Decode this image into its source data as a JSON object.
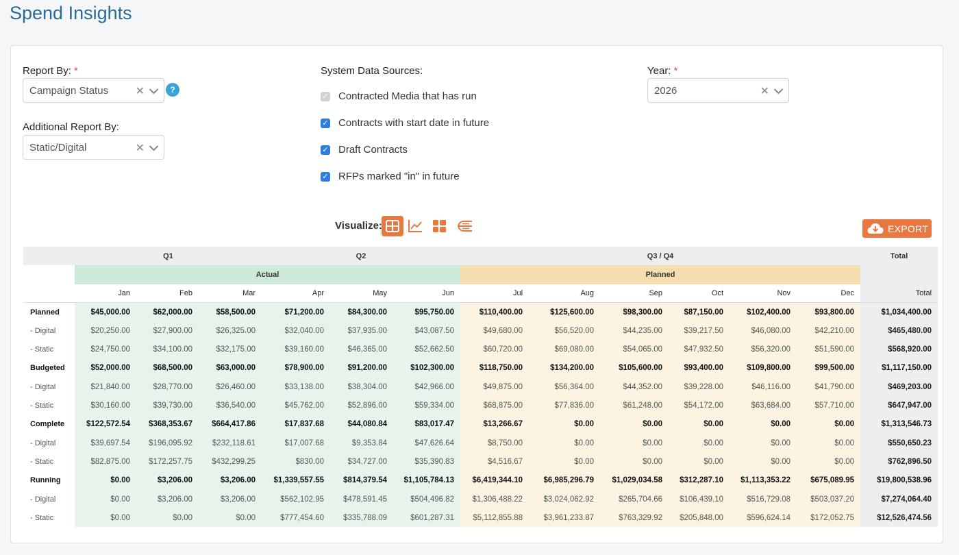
{
  "page": {
    "title": "Spend Insights"
  },
  "filters": {
    "report_by": {
      "label": "Report By:",
      "required_mark": "*",
      "value": "Campaign Status",
      "help": "?"
    },
    "additional_report_by": {
      "label": "Additional Report By:",
      "value": "Static/Digital"
    },
    "system_sources": {
      "label": "System Data Sources:",
      "options": [
        {
          "label": "Contracted Media that has run",
          "checked": true,
          "disabled": true
        },
        {
          "label": "Contracts with start date in future",
          "checked": true
        },
        {
          "label": "Draft Contracts",
          "checked": true
        },
        {
          "label": "RFPs marked \"in\" in future",
          "checked": true
        }
      ]
    },
    "year": {
      "label": "Year:",
      "required_mark": "*",
      "value": "2026"
    }
  },
  "visualize": {
    "label": "Visualize:",
    "icons": [
      "table-icon",
      "line-chart-icon",
      "grid-icon",
      "flow-icon"
    ]
  },
  "export": {
    "label": "EXPORT",
    "icon": "cloud-download-icon"
  },
  "colors": {
    "accent": "#e8783f",
    "title": "#2a6b95",
    "actual": "#e6f4ec",
    "planned": "#fdf3e2"
  },
  "table": {
    "quarters": {
      "q1": "Q1",
      "q2": "Q2",
      "q34": "Q3 / Q4",
      "total": "Total"
    },
    "groups": {
      "actual": "Actual",
      "planned": "Planned"
    },
    "months": [
      "Jan",
      "Feb",
      "Mar",
      "Apr",
      "May",
      "Jun",
      "Jul",
      "Aug",
      "Sep",
      "Oct",
      "Nov",
      "Dec"
    ],
    "total_label": "Total",
    "rows": [
      {
        "label": "Planned",
        "kind": "main",
        "values": [
          "$45,000.00",
          "$62,000.00",
          "$58,500.00",
          "$71,200.00",
          "$84,300.00",
          "$95,750.00",
          "$110,400.00",
          "$125,600.00",
          "$98,300.00",
          "$87,150.00",
          "$102,400.00",
          "$93,800.00"
        ],
        "total": "$1,034,400.00"
      },
      {
        "label": "- Digital",
        "kind": "sub",
        "values": [
          "$20,250.00",
          "$27,900.00",
          "$26,325.00",
          "$32,040.00",
          "$37,935.00",
          "$43,087.50",
          "$49,680.00",
          "$56,520.00",
          "$44,235.00",
          "$39,217.50",
          "$46,080.00",
          "$42,210.00"
        ],
        "total": "$465,480.00"
      },
      {
        "label": "- Static",
        "kind": "sub",
        "values": [
          "$24,750.00",
          "$34,100.00",
          "$32,175.00",
          "$39,160.00",
          "$46,365.00",
          "$52,662.50",
          "$60,720.00",
          "$69,080.00",
          "$54,065.00",
          "$47,932.50",
          "$56,320.00",
          "$51,590.00"
        ],
        "total": "$568,920.00"
      },
      {
        "label": "Budgeted",
        "kind": "main",
        "values": [
          "$52,000.00",
          "$68,500.00",
          "$63,000.00",
          "$78,900.00",
          "$91,200.00",
          "$102,300.00",
          "$118,750.00",
          "$134,200.00",
          "$105,600.00",
          "$93,400.00",
          "$109,800.00",
          "$99,500.00"
        ],
        "total": "$1,117,150.00"
      },
      {
        "label": "- Digital",
        "kind": "sub",
        "values": [
          "$21,840.00",
          "$28,770.00",
          "$26,460.00",
          "$33,138.00",
          "$38,304.00",
          "$42,966.00",
          "$49,875.00",
          "$56,364.00",
          "$44,352.00",
          "$39,228.00",
          "$46,116.00",
          "$41,790.00"
        ],
        "total": "$469,203.00"
      },
      {
        "label": "- Static",
        "kind": "sub",
        "values": [
          "$30,160.00",
          "$39,730.00",
          "$36,540.00",
          "$45,762.00",
          "$52,896.00",
          "$59,334.00",
          "$68,875.00",
          "$77,836.00",
          "$61,248.00",
          "$54,172.00",
          "$63,684.00",
          "$57,710.00"
        ],
        "total": "$647,947.00"
      },
      {
        "label": "Complete",
        "kind": "main",
        "values": [
          "$122,572.54",
          "$368,353.67",
          "$664,417.86",
          "$17,837.68",
          "$44,080.84",
          "$83,017.47",
          "$13,266.67",
          "$0.00",
          "$0.00",
          "$0.00",
          "$0.00",
          "$0.00"
        ],
        "total": "$1,313,546.73"
      },
      {
        "label": "- Digital",
        "kind": "sub",
        "values": [
          "$39,697.54",
          "$196,095.92",
          "$232,118.61",
          "$17,007.68",
          "$9,353.84",
          "$47,626.64",
          "$8,750.00",
          "$0.00",
          "$0.00",
          "$0.00",
          "$0.00",
          "$0.00"
        ],
        "total": "$550,650.23"
      },
      {
        "label": "- Static",
        "kind": "sub",
        "values": [
          "$82,875.00",
          "$172,257.75",
          "$432,299.25",
          "$830.00",
          "$34,727.00",
          "$35,390.83",
          "$4,516.67",
          "$0.00",
          "$0.00",
          "$0.00",
          "$0.00",
          "$0.00"
        ],
        "total": "$762,896.50"
      },
      {
        "label": "Running",
        "kind": "main",
        "values": [
          "$0.00",
          "$3,206.00",
          "$3,206.00",
          "$1,339,557.55",
          "$814,379.54",
          "$1,105,784.13",
          "$6,419,344.10",
          "$6,985,296.79",
          "$1,029,034.58",
          "$312,287.10",
          "$1,113,353.22",
          "$675,089.95"
        ],
        "total": "$19,800,538.96"
      },
      {
        "label": "- Digital",
        "kind": "sub",
        "values": [
          "$0.00",
          "$3,206.00",
          "$3,206.00",
          "$562,102.95",
          "$478,591.45",
          "$504,496.82",
          "$1,306,488.22",
          "$3,024,062.92",
          "$265,704.66",
          "$106,439.10",
          "$516,729.08",
          "$503,037.20"
        ],
        "total": "$7,274,064.40"
      },
      {
        "label": "- Static",
        "kind": "sub",
        "values": [
          "$0.00",
          "$0.00",
          "$0.00",
          "$777,454.60",
          "$335,788.09",
          "$601,287.31",
          "$5,112,855.88",
          "$3,961,233.87",
          "$763,329.92",
          "$205,848.00",
          "$596,624.14",
          "$172,052.75"
        ],
        "total": "$12,526,474.56"
      }
    ]
  }
}
